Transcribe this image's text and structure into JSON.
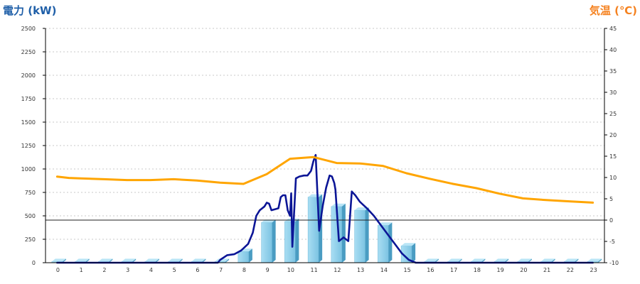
{
  "chart_data": {
    "type": "bar",
    "left_axis_title": "電力 (kW)",
    "right_axis_title": "気温 (℃)",
    "left_ylim": [
      0,
      2500
    ],
    "left_yticks": [
      0,
      250,
      500,
      750,
      1000,
      1250,
      1500,
      1750,
      2000,
      2250,
      2500
    ],
    "right_ylim": [
      -10,
      45
    ],
    "right_yticks": [
      -10,
      -5,
      0,
      5,
      10,
      15,
      20,
      25,
      30,
      35,
      40,
      45
    ],
    "categories": [
      "0",
      "1",
      "2",
      "3",
      "4",
      "5",
      "6",
      "7",
      "8",
      "9",
      "10",
      "11",
      "12",
      "13",
      "14",
      "15",
      "16",
      "17",
      "18",
      "19",
      "20",
      "21",
      "22",
      "23"
    ],
    "grid": true,
    "series": [
      {
        "kind": "bar",
        "axis": "left",
        "values": [
          12,
          12,
          12,
          12,
          12,
          12,
          12,
          12,
          120,
          430,
          440,
          700,
          600,
          560,
          400,
          180,
          12,
          12,
          12,
          12,
          12,
          12,
          12,
          12
        ]
      },
      {
        "kind": "line",
        "axis": "left",
        "x": [
          0,
          6,
          6.9,
          7.0,
          7.3,
          7.6,
          7.9,
          8.2,
          8.4,
          8.55,
          8.7,
          8.9,
          9.0,
          9.1,
          9.2,
          9.35,
          9.5,
          9.6,
          9.7,
          9.8,
          9.9,
          10.0,
          10.05,
          10.1,
          10.25,
          10.4,
          10.6,
          10.75,
          10.9,
          11.0,
          11.1,
          11.25,
          11.4,
          11.55,
          11.7,
          11.8,
          11.9,
          11.95,
          12.1,
          12.3,
          12.5,
          12.65,
          12.8,
          13.0,
          13.3,
          13.6,
          13.9,
          14.2,
          14.5,
          14.8,
          15.1,
          15.4,
          15.7,
          16.0,
          23.0
        ],
        "values": [
          0,
          0,
          0,
          30,
          80,
          90,
          130,
          200,
          320,
          500,
          560,
          600,
          640,
          630,
          560,
          570,
          580,
          700,
          720,
          720,
          560,
          500,
          740,
          170,
          900,
          920,
          930,
          930,
          980,
          1080,
          1150,
          340,
          600,
          800,
          930,
          920,
          850,
          780,
          230,
          270,
          230,
          760,
          720,
          650,
          580,
          500,
          400,
          300,
          200,
          100,
          30,
          0,
          0,
          0,
          0
        ]
      },
      {
        "kind": "line",
        "axis": "right",
        "color": "#ffa500",
        "x": [
          0,
          0.5,
          1,
          2,
          3,
          4,
          5,
          6,
          7,
          8,
          9,
          10,
          11,
          12,
          13,
          14,
          15,
          16,
          17,
          18,
          19,
          20,
          21,
          22,
          23
        ],
        "values": [
          10.2,
          9.9,
          9.8,
          9.6,
          9.4,
          9.4,
          9.6,
          9.3,
          8.8,
          8.5,
          10.8,
          14.4,
          14.8,
          13.4,
          13.3,
          12.7,
          11.0,
          9.7,
          8.5,
          7.5,
          6.2,
          5.1,
          4.7,
          4.4,
          4.1
        ]
      }
    ]
  },
  "colors": {
    "left_axis_title": "#1f5fa8",
    "right_axis_title": "#f58220",
    "bar": "#8fd0ec",
    "power_line": "#0b1596",
    "temp_line": "#ffa500"
  }
}
